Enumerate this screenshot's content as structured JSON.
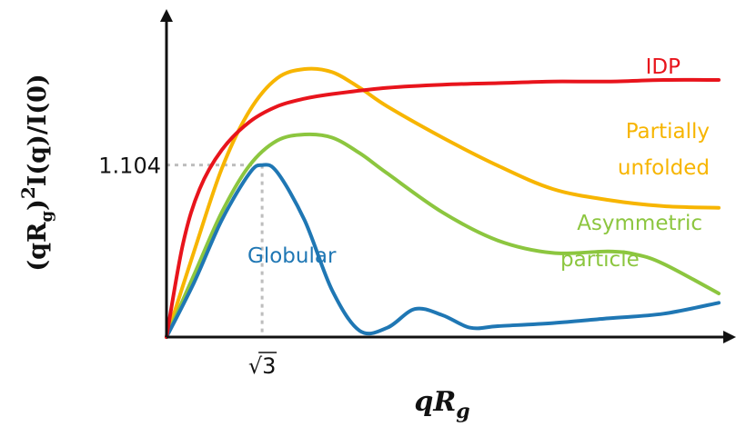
{
  "chart_data": {
    "type": "line",
    "title": "",
    "xlabel": "qR",
    "xlabel_sub": "g",
    "ylabel_parts": {
      "open": "(qR",
      "sub": "g",
      "close": ")",
      "sup": "2",
      "rest": "I(q)/I(0)"
    },
    "xlim": [
      0,
      10
    ],
    "ylim": [
      0,
      2.0
    ],
    "grid": false,
    "legend": "none (series labeled inline)",
    "reference": {
      "x_value": 1.732,
      "x_tick_label": "√3",
      "y_value": 1.104,
      "y_tick_label": "1.104",
      "style": "dotted gray guide lines"
    },
    "series": [
      {
        "name": "IDP",
        "color": "#e8141c",
        "x": [
          0,
          0.3,
          0.6,
          1.0,
          1.5,
          2.0,
          2.5,
          3.0,
          4.0,
          5.0,
          6.0,
          7.0,
          8.0,
          9.0,
          10.0
        ],
        "y": [
          0,
          0.6,
          0.95,
          1.2,
          1.38,
          1.48,
          1.53,
          1.56,
          1.6,
          1.62,
          1.63,
          1.64,
          1.64,
          1.65,
          1.65
        ]
      },
      {
        "name": "Partially unfolded",
        "color": "#f7b500",
        "x": [
          0,
          0.5,
          1.0,
          1.5,
          2.0,
          2.5,
          3.0,
          3.5,
          4.0,
          5.0,
          6.0,
          7.0,
          8.0,
          9.0,
          10.0
        ],
        "y": [
          0,
          0.55,
          1.08,
          1.45,
          1.66,
          1.72,
          1.7,
          1.6,
          1.48,
          1.28,
          1.1,
          0.95,
          0.88,
          0.84,
          0.83
        ]
      },
      {
        "name": "Asymmetric particle",
        "color": "#8cc63f",
        "x": [
          0,
          0.5,
          1.0,
          1.5,
          2.0,
          2.5,
          3.0,
          3.5,
          4.0,
          5.0,
          6.0,
          7.0,
          8.0,
          8.5,
          9.0,
          10.0
        ],
        "y": [
          0,
          0.4,
          0.8,
          1.1,
          1.26,
          1.3,
          1.28,
          1.18,
          1.05,
          0.8,
          0.62,
          0.54,
          0.55,
          0.53,
          0.47,
          0.28
        ]
      },
      {
        "name": "Globular",
        "color": "#1f77b4",
        "x": [
          0,
          0.5,
          1.0,
          1.5,
          1.732,
          2.0,
          2.5,
          3.0,
          3.5,
          4.0,
          4.5,
          5.0,
          5.5,
          6.0,
          7.0,
          8.0,
          9.0,
          10.0
        ],
        "y": [
          0,
          0.35,
          0.75,
          1.05,
          1.104,
          1.06,
          0.75,
          0.3,
          0.04,
          0.06,
          0.18,
          0.14,
          0.06,
          0.07,
          0.09,
          0.12,
          0.15,
          0.22
        ]
      }
    ]
  }
}
